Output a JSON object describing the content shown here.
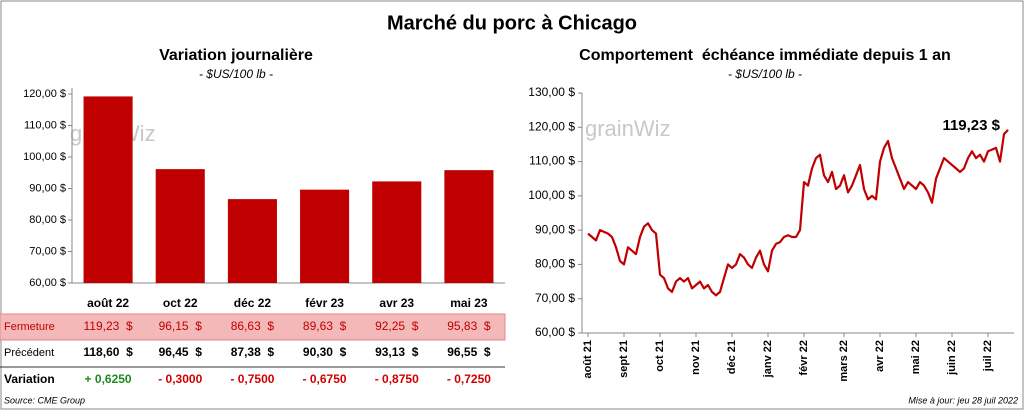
{
  "title": "Marché du porc à Chicago",
  "watermark": "grainWiz",
  "source": "Source: CME Group",
  "updated": "Mise à jour: jeu 28 juil 2022",
  "chart_data": [
    {
      "type": "bar",
      "title": "Variation journalière",
      "subtitle": "- $US/100 lb -",
      "categories": [
        "août 22",
        "oct 22",
        "déc 22",
        "févr 23",
        "avr 23",
        "mai 23"
      ],
      "values": [
        119.23,
        96.15,
        86.63,
        89.63,
        92.25,
        95.83
      ],
      "value_labels": [
        "119,23  $",
        "96,15  $",
        "86,63  $",
        "89,63  $",
        "92,25  $",
        "95,83  $"
      ],
      "color": "#c00000",
      "ylim": [
        60,
        120
      ],
      "yticks": [
        {
          "value": 60,
          "label": "60,00 $"
        },
        {
          "value": 70,
          "label": "70,00 $"
        },
        {
          "value": 80,
          "label": "80,00 $"
        },
        {
          "value": 90,
          "label": "90,00 $"
        },
        {
          "value": 100,
          "label": "100,00 $"
        },
        {
          "value": 110,
          "label": "110,00 $"
        },
        {
          "value": 120,
          "label": "120,00 $"
        }
      ]
    },
    {
      "type": "line",
      "title": "Comportement  échéance immédiate depuis 1 an",
      "subtitle": "- $US/100 lb -",
      "annotation": "119,23 $",
      "color": "#c00000",
      "values": [
        89,
        88,
        87,
        90,
        89.5,
        89,
        88,
        85,
        81,
        80,
        85,
        84,
        83,
        88,
        91,
        92,
        90,
        89,
        77,
        76,
        73,
        72,
        75,
        76,
        75,
        76,
        73,
        74,
        75,
        73,
        74,
        72,
        71,
        72,
        76,
        80,
        79,
        80,
        83,
        82,
        80,
        79,
        82,
        84,
        80,
        78,
        84,
        86,
        86.5,
        88,
        88.5,
        88,
        88,
        90,
        104,
        103,
        108,
        111,
        112,
        106,
        104,
        107,
        102,
        103,
        106,
        101,
        103,
        106,
        109,
        102,
        99,
        100,
        99,
        110,
        114,
        116,
        111,
        108,
        105,
        102,
        104,
        103,
        102,
        104,
        103,
        101,
        98,
        105,
        108,
        111,
        110,
        109,
        108,
        107,
        108,
        111,
        113,
        111,
        112,
        110,
        113,
        113.5,
        114,
        110,
        118,
        119.23
      ],
      "xlim": [
        0,
        105
      ],
      "xticks": [
        {
          "value": 0,
          "label": "août 21"
        },
        {
          "value": 9,
          "label": "sept 21"
        },
        {
          "value": 18,
          "label": "oct 21"
        },
        {
          "value": 27,
          "label": "nov 21"
        },
        {
          "value": 36,
          "label": "déc 21"
        },
        {
          "value": 45,
          "label": "janv 22"
        },
        {
          "value": 54,
          "label": "févr 22"
        },
        {
          "value": 64,
          "label": "mars 22"
        },
        {
          "value": 73,
          "label": "avr 22"
        },
        {
          "value": 82,
          "label": "mai 22"
        },
        {
          "value": 91,
          "label": "juin 22"
        },
        {
          "value": 100,
          "label": "juil 22"
        }
      ],
      "ylim": [
        60,
        130
      ],
      "yticks": [
        {
          "value": 60,
          "label": "60,00 $"
        },
        {
          "value": 70,
          "label": "70,00 $"
        },
        {
          "value": 80,
          "label": "80,00 $"
        },
        {
          "value": 90,
          "label": "90,00 $"
        },
        {
          "value": 100,
          "label": "100,00 $"
        },
        {
          "value": 110,
          "label": "110,00 $"
        },
        {
          "value": 120,
          "label": "120,00 $"
        },
        {
          "value": 130,
          "label": "130,00 $"
        }
      ]
    }
  ],
  "table": {
    "fermeture_label": "Fermeture",
    "rows": [
      {
        "label": "Précédent",
        "cells": [
          "118,60  $",
          "96,45  $",
          "87,38  $",
          "90,30  $",
          "93,13  $",
          "96,55  $"
        ]
      },
      {
        "label": "Variation",
        "cells": [
          "+ 0,6250",
          "- 0,3000",
          "- 0,7500",
          "- 0,6750",
          "- 0,8750",
          "- 0,7250"
        ],
        "colors": [
          "#1e8a1e",
          "#d00000",
          "#d00000",
          "#d00000",
          "#d00000",
          "#d00000"
        ]
      }
    ]
  }
}
